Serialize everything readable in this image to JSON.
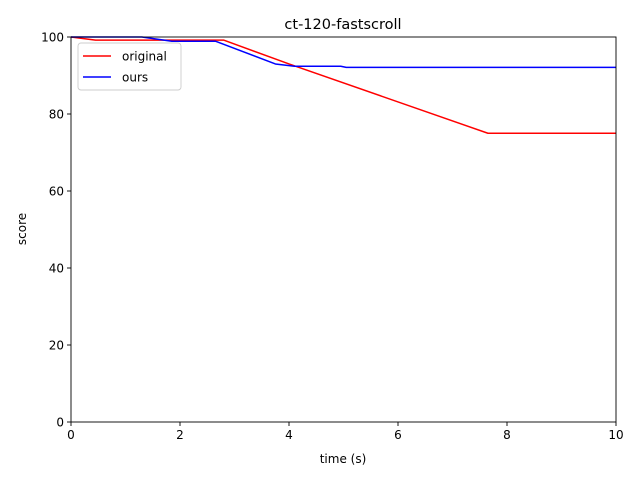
{
  "chart_data": {
    "type": "line",
    "title": "ct-120-fastscroll",
    "xlabel": "time (s)",
    "ylabel": "score",
    "xlim": [
      0,
      10
    ],
    "ylim": [
      0,
      100
    ],
    "xticks": [
      0,
      2,
      4,
      6,
      8,
      10
    ],
    "yticks": [
      0,
      20,
      40,
      60,
      80,
      100
    ],
    "xtick_labels": [
      "0",
      "2",
      "4",
      "6",
      "8",
      "10"
    ],
    "ytick_labels": [
      "0",
      "20",
      "40",
      "60",
      "80",
      "100"
    ],
    "grid": false,
    "legend_position": "top-left",
    "series": [
      {
        "name": "original",
        "color": "#ff0000",
        "x": [
          0,
          0.45,
          1.85,
          2.8,
          4.0,
          7.65,
          10
        ],
        "y": [
          100,
          99.2,
          99.2,
          99.2,
          93.0,
          75.0,
          75.0
        ]
      },
      {
        "name": "ours",
        "color": "#0000ff",
        "x": [
          0,
          1.3,
          1.85,
          2.65,
          3.75,
          4.1,
          4.95,
          5.05,
          10
        ],
        "y": [
          100,
          100,
          98.9,
          98.9,
          93.0,
          92.4,
          92.4,
          92.1,
          92.1
        ]
      }
    ]
  }
}
